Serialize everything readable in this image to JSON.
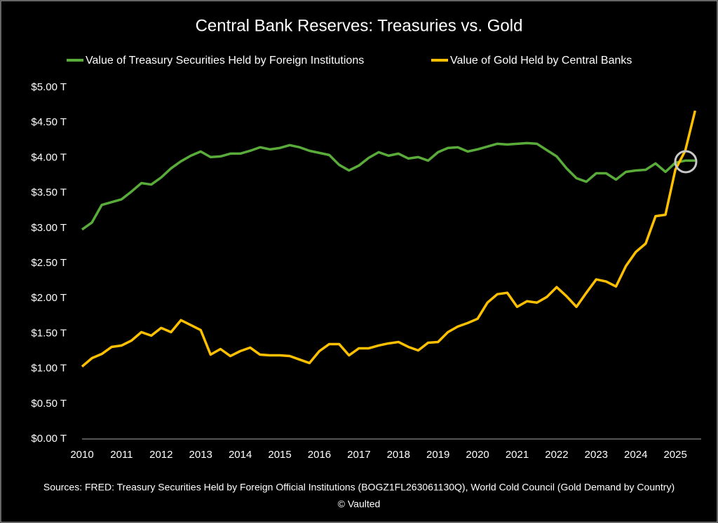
{
  "chart_data": {
    "type": "line",
    "title": "Central Bank Reserves: Treasuries vs. Gold",
    "source": "Sources: FRED: Treasury Securities Held by Foreign Official Institutions (BOGZ1FL263061130Q), World Cold Council (Gold Demand by Country)",
    "copyright": "© Vaulted",
    "legend": "top",
    "grid": false,
    "xlim": [
      2010,
      2025.6
    ],
    "xticks": [
      2010,
      2011,
      2012,
      2013,
      2014,
      2015,
      2016,
      2017,
      2018,
      2019,
      2020,
      2021,
      2022,
      2023,
      2024,
      2025
    ],
    "ylim": [
      0,
      5
    ],
    "yticks": [
      {
        "value": 0,
        "label": "$0.00 T"
      },
      {
        "value": 0.5,
        "label": "$0.50 T"
      },
      {
        "value": 1,
        "label": "$1.00 T"
      },
      {
        "value": 1.5,
        "label": "$1.50 T"
      },
      {
        "value": 2,
        "label": "$2.00 T"
      },
      {
        "value": 2.5,
        "label": "$2.50 T"
      },
      {
        "value": 3,
        "label": "$3.00 T"
      },
      {
        "value": 3.5,
        "label": "$3.50 T"
      },
      {
        "value": 4,
        "label": "$4.00 T"
      },
      {
        "value": 4.5,
        "label": "$4.50 T"
      },
      {
        "value": 5,
        "label": "$5.00 T"
      }
    ],
    "x": [
      2010,
      2010.25,
      2010.5,
      2010.75,
      2011,
      2011.25,
      2011.5,
      2011.75,
      2012,
      2012.25,
      2012.5,
      2012.75,
      2013,
      2013.25,
      2013.5,
      2013.75,
      2014,
      2014.25,
      2014.5,
      2014.75,
      2015,
      2015.25,
      2015.5,
      2015.75,
      2016,
      2016.25,
      2016.5,
      2016.75,
      2017,
      2017.25,
      2017.5,
      2017.75,
      2018,
      2018.25,
      2018.5,
      2018.75,
      2019,
      2019.25,
      2019.5,
      2019.75,
      2020,
      2020.25,
      2020.5,
      2020.75,
      2021,
      2021.25,
      2021.5,
      2021.75,
      2022,
      2022.25,
      2022.5,
      2022.75,
      2023,
      2023.25,
      2023.5,
      2023.75,
      2024,
      2024.25,
      2024.5,
      2024.75,
      2025,
      2025.25,
      2025.5
    ],
    "series": [
      {
        "name": "Value of Treasury Securities Held by Foreign Institutions",
        "color": "#5aac3a",
        "values": [
          2.98,
          3.08,
          3.33,
          3.37,
          3.41,
          3.52,
          3.64,
          3.62,
          3.72,
          3.85,
          3.95,
          4.03,
          4.09,
          4.01,
          4.02,
          4.06,
          4.06,
          4.1,
          4.15,
          4.12,
          4.14,
          4.18,
          4.15,
          4.1,
          4.07,
          4.04,
          3.9,
          3.82,
          3.89,
          4.0,
          4.08,
          4.03,
          4.06,
          3.99,
          4.01,
          3.96,
          4.08,
          4.14,
          4.15,
          4.09,
          4.12,
          4.16,
          4.2,
          4.19,
          4.2,
          4.21,
          4.2,
          4.11,
          4.02,
          3.85,
          3.71,
          3.66,
          3.78,
          3.78,
          3.69,
          3.8,
          3.82,
          3.83,
          3.92,
          3.8,
          3.93,
          3.96,
          3.96
        ]
      },
      {
        "name": "Value of Gold Held by Central Banks",
        "color": "#ffc000",
        "values": [
          1.03,
          1.15,
          1.21,
          1.31,
          1.33,
          1.4,
          1.52,
          1.47,
          1.58,
          1.52,
          1.69,
          1.62,
          1.55,
          1.2,
          1.28,
          1.18,
          1.25,
          1.3,
          1.2,
          1.19,
          1.19,
          1.18,
          1.13,
          1.08,
          1.25,
          1.35,
          1.35,
          1.19,
          1.29,
          1.29,
          1.33,
          1.36,
          1.38,
          1.31,
          1.26,
          1.37,
          1.38,
          1.52,
          1.6,
          1.65,
          1.71,
          1.94,
          2.06,
          2.08,
          1.88,
          1.96,
          1.94,
          2.02,
          2.16,
          2.03,
          1.88,
          2.08,
          2.27,
          2.24,
          2.17,
          2.46,
          2.66,
          2.78,
          3.17,
          3.19,
          3.83,
          4.1,
          4.67
        ]
      }
    ]
  }
}
